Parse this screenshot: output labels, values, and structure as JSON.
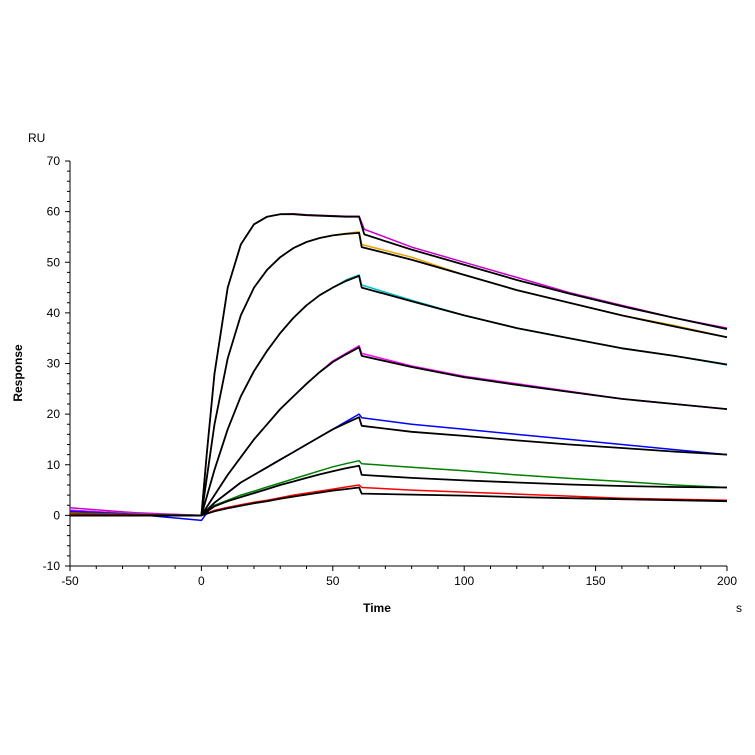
{
  "chart_data": {
    "type": "line",
    "title": "",
    "xlabel": "Time",
    "ylabel": "Response",
    "x_unit": "s",
    "y_unit": "RU",
    "xlim": [
      -50,
      200
    ],
    "ylim": [
      -10,
      70
    ],
    "x_ticks": [
      -50,
      0,
      50,
      100,
      150,
      200
    ],
    "y_ticks": [
      -10,
      0,
      10,
      20,
      30,
      40,
      50,
      60,
      70
    ],
    "grid": false,
    "legend": "none",
    "series": [
      {
        "color": "#cc00cc",
        "x": [
          -50,
          -25,
          0,
          2,
          5,
          10,
          15,
          20,
          25,
          30,
          35,
          40,
          45,
          50,
          55,
          60,
          62,
          80,
          100,
          120,
          140,
          160,
          180,
          200
        ],
        "y": [
          1.5,
          0.5,
          0,
          12,
          28,
          45,
          53.5,
          57.5,
          59,
          59.5,
          59.6,
          59.4,
          59.3,
          59.2,
          59.1,
          59.1,
          56.5,
          53,
          50,
          47,
          44,
          41.5,
          39,
          37
        ]
      },
      {
        "color": "#e8a000",
        "x": [
          -50,
          -25,
          0,
          5,
          10,
          15,
          20,
          25,
          30,
          35,
          40,
          45,
          50,
          55,
          60,
          61,
          80,
          100,
          120,
          140,
          160,
          180,
          200
        ],
        "y": [
          1,
          0.3,
          0,
          18,
          31,
          39.5,
          45,
          48.5,
          51,
          52.8,
          54,
          54.8,
          55.3,
          55.7,
          56,
          53.5,
          51,
          47.5,
          44.5,
          42,
          39.5,
          37.5,
          35.2
        ]
      },
      {
        "color": "#00c0c8",
        "x": [
          -50,
          -25,
          0,
          5,
          10,
          15,
          20,
          25,
          30,
          35,
          40,
          45,
          50,
          55,
          60,
          61,
          80,
          100,
          120,
          140,
          160,
          180,
          200
        ],
        "y": [
          1,
          0.3,
          0,
          9,
          17,
          23.5,
          28.5,
          32.5,
          36,
          39,
          41.5,
          43.5,
          45,
          46.5,
          47.5,
          45.5,
          42.5,
          39.5,
          37,
          35,
          33,
          31.5,
          29.7
        ]
      },
      {
        "color": "#ff00ff",
        "x": [
          -50,
          -25,
          0,
          5,
          10,
          15,
          20,
          25,
          30,
          35,
          40,
          45,
          50,
          55,
          60,
          61,
          80,
          100,
          120,
          140,
          160,
          180,
          200
        ],
        "y": [
          1,
          0.3,
          0,
          4,
          8,
          11.5,
          15,
          18,
          21,
          23.5,
          26,
          28.3,
          30.5,
          32,
          33.5,
          32,
          29.5,
          27.5,
          26,
          24.5,
          23,
          22,
          21
        ]
      },
      {
        "color": "#0000ff",
        "x": [
          -50,
          -25,
          0,
          5,
          10,
          15,
          20,
          25,
          30,
          35,
          40,
          45,
          50,
          55,
          60,
          61,
          80,
          100,
          120,
          140,
          160,
          180,
          200
        ],
        "y": [
          0.8,
          0.2,
          -1,
          2.5,
          4.5,
          6.5,
          8,
          9.5,
          11,
          12.5,
          14,
          15.5,
          17,
          18.5,
          20,
          19.3,
          18,
          17,
          16,
          15,
          14,
          13,
          12
        ]
      },
      {
        "color": "#008000",
        "x": [
          -50,
          -25,
          0,
          5,
          10,
          15,
          20,
          25,
          30,
          35,
          40,
          45,
          50,
          55,
          60,
          61,
          80,
          100,
          120,
          140,
          160,
          180,
          200
        ],
        "y": [
          0.5,
          0.2,
          0,
          2,
          3,
          4,
          4.8,
          5.6,
          6.4,
          7.2,
          8,
          8.8,
          9.6,
          10.2,
          10.8,
          10.2,
          9.5,
          8.8,
          8,
          7.3,
          6.7,
          6,
          5.5
        ]
      },
      {
        "color": "#ff0000",
        "x": [
          -50,
          -25,
          0,
          5,
          10,
          15,
          20,
          25,
          30,
          35,
          40,
          45,
          50,
          55,
          60,
          61,
          80,
          100,
          120,
          140,
          160,
          180,
          200
        ],
        "y": [
          0.3,
          0.1,
          0,
          1,
          1.6,
          2.1,
          2.6,
          3,
          3.5,
          4,
          4.4,
          4.8,
          5.2,
          5.6,
          6,
          5.5,
          5,
          4.6,
          4.2,
          3.8,
          3.4,
          3.2,
          3
        ]
      },
      {
        "color": "#000000",
        "x": [
          -50,
          -25,
          0,
          2,
          5,
          10,
          15,
          20,
          25,
          30,
          35,
          40,
          45,
          50,
          55,
          60,
          62,
          80,
          100,
          120,
          140,
          160,
          180,
          200
        ],
        "y": [
          0,
          0,
          0,
          12,
          28,
          45,
          53.5,
          57.5,
          59,
          59.5,
          59.5,
          59.3,
          59.2,
          59.1,
          59,
          59,
          55.5,
          52.5,
          49.5,
          46.5,
          43.8,
          41.3,
          39,
          36.8
        ]
      },
      {
        "color": "#000000",
        "x": [
          -50,
          -25,
          0,
          5,
          10,
          15,
          20,
          25,
          30,
          35,
          40,
          45,
          50,
          55,
          60,
          61,
          80,
          100,
          120,
          140,
          160,
          180,
          200
        ],
        "y": [
          0,
          0,
          0,
          18,
          31,
          39.5,
          45,
          48.5,
          51,
          52.8,
          54,
          54.8,
          55.3,
          55.6,
          55.8,
          53,
          50.5,
          47.5,
          44.5,
          42,
          39.5,
          37.3,
          35.2
        ]
      },
      {
        "color": "#000000",
        "x": [
          -50,
          -25,
          0,
          5,
          10,
          15,
          20,
          25,
          30,
          35,
          40,
          45,
          50,
          55,
          60,
          61,
          80,
          100,
          120,
          140,
          160,
          180,
          200
        ],
        "y": [
          0,
          0,
          0,
          9,
          17,
          23.5,
          28.5,
          32.5,
          36,
          39,
          41.5,
          43.5,
          45,
          46.3,
          47.3,
          45,
          42.3,
          39.5,
          37,
          35,
          33,
          31.5,
          29.8
        ]
      },
      {
        "color": "#000000",
        "x": [
          -50,
          -25,
          0,
          5,
          10,
          15,
          20,
          25,
          30,
          35,
          40,
          45,
          50,
          55,
          60,
          61,
          80,
          100,
          120,
          140,
          160,
          180,
          200
        ],
        "y": [
          0,
          0,
          0,
          4,
          8,
          11.5,
          15,
          18,
          21,
          23.5,
          26,
          28.3,
          30.3,
          31.8,
          33.2,
          31.5,
          29.3,
          27.3,
          25.8,
          24.4,
          23,
          22,
          21
        ]
      },
      {
        "color": "#000000",
        "x": [
          -50,
          -25,
          0,
          5,
          10,
          15,
          20,
          25,
          30,
          35,
          40,
          45,
          50,
          55,
          60,
          61,
          80,
          100,
          120,
          140,
          160,
          180,
          200
        ],
        "y": [
          0,
          0,
          0,
          2.5,
          4.5,
          6.5,
          8,
          9.5,
          11,
          12.5,
          14,
          15.5,
          17,
          18.2,
          19.4,
          17.7,
          16.5,
          15.7,
          14.8,
          14,
          13.3,
          12.6,
          12
        ]
      },
      {
        "color": "#000000",
        "x": [
          -50,
          -25,
          0,
          5,
          10,
          15,
          20,
          25,
          30,
          35,
          40,
          45,
          50,
          55,
          60,
          61,
          80,
          100,
          120,
          140,
          160,
          180,
          200
        ],
        "y": [
          0,
          0,
          0,
          1.8,
          2.8,
          3.6,
          4.4,
          5.2,
          6,
          6.7,
          7.4,
          8.1,
          8.7,
          9.3,
          9.8,
          8,
          7.4,
          6.9,
          6.5,
          6.1,
          5.8,
          5.6,
          5.5
        ]
      },
      {
        "color": "#000000",
        "x": [
          -50,
          -25,
          0,
          5,
          10,
          15,
          20,
          25,
          30,
          35,
          40,
          45,
          50,
          55,
          60,
          61,
          80,
          100,
          120,
          140,
          160,
          180,
          200
        ],
        "y": [
          0,
          0,
          0,
          0.8,
          1.4,
          1.9,
          2.4,
          2.8,
          3.3,
          3.7,
          4.1,
          4.5,
          4.9,
          5.2,
          5.5,
          4.3,
          4.1,
          3.9,
          3.6,
          3.4,
          3.2,
          3,
          2.8
        ]
      }
    ]
  }
}
